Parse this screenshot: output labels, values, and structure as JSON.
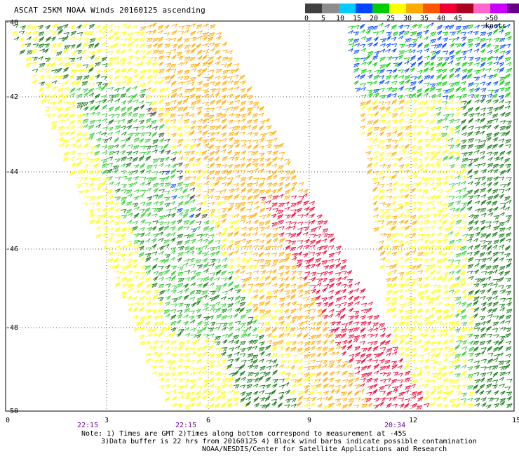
{
  "title": "ASCAT 25KM NOAA Winds 20160125 ascending",
  "legend": {
    "colors": [
      "#404040",
      "#8c8c8c",
      "#00ccff",
      "#0044ff",
      "#00cc00",
      "#ffff00",
      "#ffaa00",
      "#ff5500",
      "#ee0033",
      "#aa0022",
      "#ff66cc",
      "#cc00ff",
      "#660088"
    ],
    "ticks": [
      "0",
      "5",
      "10",
      "15",
      "20",
      "25",
      "30",
      "35",
      "40",
      "45",
      ">50 knots"
    ]
  },
  "axes": {
    "x_ticks": [
      "0",
      "3",
      "6",
      "9",
      "12",
      "15"
    ],
    "y_ticks": [
      "-40",
      "-42",
      "-44",
      "-46",
      "-48",
      "-50"
    ]
  },
  "times": [
    "22:15",
    "22:15",
    "20:34"
  ],
  "notes": {
    "line1": "Note: 1) Times are GMT 2)Times along bottom correspond to measurement at -45S",
    "line2": "3)Data buffer is 22 hrs from 20160125 4) Black wind barbs indicate possible contamination",
    "line3": "NOAA/NESDIS/Center for Satellite Applications and Research"
  }
}
